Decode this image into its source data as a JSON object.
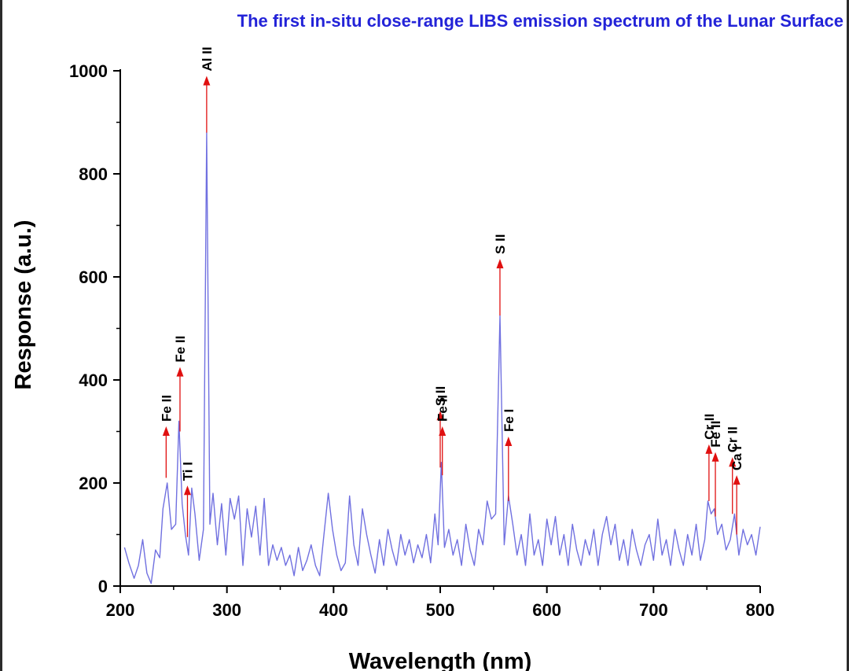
{
  "chart_data": {
    "type": "line",
    "title": "The first in-situ close-range LIBS emission spectrum of the Lunar Surface",
    "xlabel": "Wavelength (nm)",
    "ylabel": "Response (a.u.)",
    "xlim": [
      200,
      800
    ],
    "ylim": [
      0,
      1000
    ],
    "xticks": [
      200,
      300,
      400,
      500,
      600,
      700,
      800
    ],
    "yticks": [
      0,
      200,
      400,
      600,
      800,
      1000
    ],
    "grid": false,
    "colors": {
      "line": "#7070e0",
      "arrow": "#e01010",
      "title": "#2323d8"
    },
    "series": [
      {
        "x": [
          204,
          208,
          213,
          217,
          221,
          225,
          229,
          233,
          237,
          240,
          244,
          248,
          252,
          255,
          258,
          261,
          264,
          267,
          270,
          274,
          278,
          281,
          284,
          287,
          291,
          295,
          299,
          303,
          307,
          311,
          315,
          319,
          323,
          327,
          331,
          335,
          339,
          343,
          347,
          351,
          355,
          359,
          363,
          367,
          371,
          375,
          379,
          383,
          387,
          391,
          395,
          399,
          403,
          407,
          411,
          415,
          419,
          423,
          427,
          431,
          435,
          439,
          443,
          447,
          451,
          455,
          459,
          463,
          467,
          471,
          475,
          479,
          483,
          487,
          491,
          495,
          498,
          501,
          504,
          508,
          512,
          516,
          520,
          524,
          528,
          532,
          536,
          540,
          544,
          548,
          552,
          556,
          560,
          564,
          568,
          572,
          576,
          580,
          584,
          588,
          592,
          596,
          600,
          604,
          608,
          612,
          616,
          620,
          624,
          628,
          632,
          636,
          640,
          644,
          648,
          652,
          656,
          660,
          664,
          668,
          672,
          676,
          680,
          684,
          688,
          692,
          696,
          700,
          704,
          708,
          712,
          716,
          720,
          724,
          728,
          732,
          736,
          740,
          744,
          748,
          751,
          754,
          757,
          760,
          764,
          768,
          772,
          776,
          780,
          784,
          788,
          792,
          796,
          800
        ],
        "values": [
          75,
          45,
          15,
          40,
          90,
          25,
          5,
          70,
          55,
          150,
          200,
          110,
          120,
          320,
          160,
          100,
          60,
          190,
          140,
          50,
          110,
          880,
          120,
          180,
          80,
          160,
          60,
          170,
          130,
          175,
          40,
          150,
          95,
          155,
          60,
          170,
          40,
          80,
          50,
          75,
          40,
          60,
          20,
          75,
          30,
          50,
          80,
          40,
          20,
          100,
          180,
          110,
          60,
          30,
          45,
          175,
          80,
          40,
          150,
          100,
          60,
          25,
          90,
          40,
          110,
          70,
          40,
          100,
          60,
          90,
          45,
          80,
          55,
          100,
          45,
          140,
          80,
          240,
          75,
          110,
          60,
          90,
          40,
          120,
          70,
          40,
          110,
          80,
          165,
          130,
          140,
          525,
          80,
          175,
          120,
          60,
          100,
          40,
          140,
          60,
          90,
          40,
          130,
          80,
          135,
          60,
          100,
          40,
          120,
          70,
          40,
          90,
          60,
          110,
          40,
          100,
          135,
          80,
          120,
          50,
          90,
          40,
          110,
          70,
          40,
          80,
          100,
          50,
          130,
          60,
          90,
          40,
          110,
          70,
          40,
          100,
          60,
          120,
          50,
          90,
          165,
          140,
          150,
          100,
          120,
          70,
          90,
          140,
          60,
          110,
          80,
          100,
          60,
          115
        ]
      }
    ],
    "peak_labels": [
      {
        "label": "Fe II",
        "x": 243,
        "y_base": 210,
        "y_tip": 310
      },
      {
        "label": "Fe II",
        "x": 256,
        "y_base": 300,
        "y_tip": 425
      },
      {
        "label": "Ti I",
        "x": 263,
        "y_base": 95,
        "y_tip": 195
      },
      {
        "label": "Al II",
        "x": 281,
        "y_base": 880,
        "y_tip": 990
      },
      {
        "label": "S II",
        "x": 500,
        "y_base": 230,
        "y_tip": 340
      },
      {
        "label": "Fe II",
        "x": 502,
        "y_base": 215,
        "y_tip": 310
      },
      {
        "label": "S II",
        "x": 556,
        "y_base": 525,
        "y_tip": 635
      },
      {
        "label": "Fe I",
        "x": 564,
        "y_base": 165,
        "y_tip": 290
      },
      {
        "label": "Cr II",
        "x": 752,
        "y_base": 165,
        "y_tip": 275
      },
      {
        "label": "Fe II",
        "x": 758,
        "y_base": 135,
        "y_tip": 260
      },
      {
        "label": "Cr II",
        "x": 774,
        "y_base": 140,
        "y_tip": 250
      },
      {
        "label": "Ca I",
        "x": 778,
        "y_base": 100,
        "y_tip": 215
      }
    ]
  }
}
